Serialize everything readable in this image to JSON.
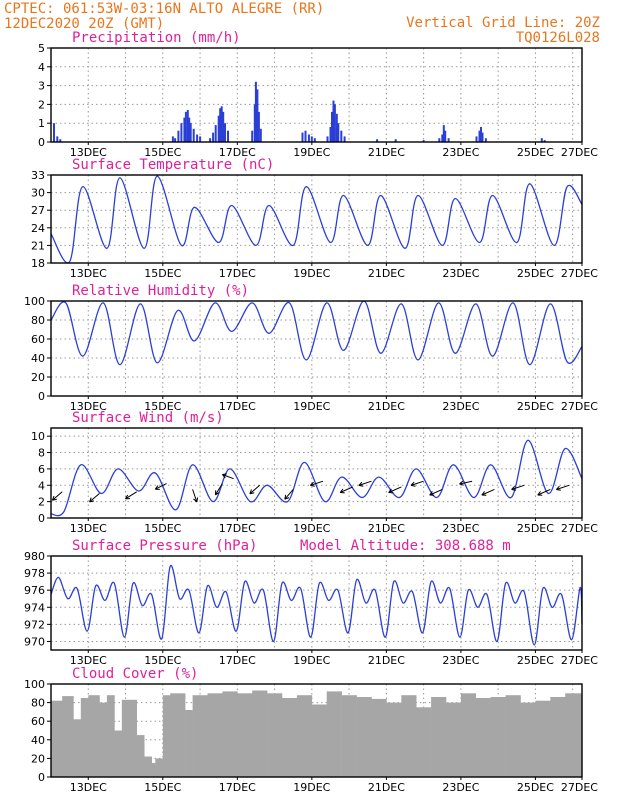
{
  "header": {
    "line1_left": "CPTEC:   061:53W-03:16N  ALTO ALEGRE (RR)",
    "line2_left": "12DEC2020 20Z (GMT)",
    "line1_right": "Vertical Grid Line: 20Z",
    "line2_right": "TQ0126L028"
  },
  "colors": {
    "header": "#e8761c",
    "panel_title": "#e0209a",
    "series": "#2b3fd6",
    "cloud": "#a6a6a6",
    "arrow": "#000000"
  },
  "x_axis": {
    "tick_labels": [
      "13DEC",
      "15DEC",
      "17DEC",
      "19DEC",
      "21DEC",
      "23DEC",
      "25DEC",
      "27DEC"
    ],
    "range_days_after_start": [
      0,
      14.25
    ],
    "vertical_grid_note": "daily at 20Z"
  },
  "chart_data": [
    {
      "id": "precipitation",
      "type": "bar",
      "title": "Precipitation (mm/h)",
      "y_ticks": [
        "0",
        "1",
        "2",
        "3",
        "4",
        "5"
      ],
      "ylim": [
        0,
        5
      ],
      "grid": true,
      "series_color": "#2b3fd6",
      "bars": [
        [
          0.08,
          1.0
        ],
        [
          0.17,
          0.3
        ],
        [
          0.25,
          0.15
        ],
        [
          3.27,
          0.3
        ],
        [
          3.33,
          0.2
        ],
        [
          3.42,
          0.6
        ],
        [
          3.5,
          1.0
        ],
        [
          3.58,
          1.3
        ],
        [
          3.62,
          1.6
        ],
        [
          3.67,
          1.7
        ],
        [
          3.71,
          1.3
        ],
        [
          3.75,
          1.0
        ],
        [
          3.83,
          0.7
        ],
        [
          3.92,
          0.4
        ],
        [
          4.0,
          0.3
        ],
        [
          4.27,
          0.2
        ],
        [
          4.35,
          0.5
        ],
        [
          4.42,
          0.9
        ],
        [
          4.5,
          1.4
        ],
        [
          4.54,
          1.8
        ],
        [
          4.58,
          1.9
        ],
        [
          4.62,
          1.6
        ],
        [
          4.67,
          1.0
        ],
        [
          4.75,
          0.6
        ],
        [
          5.4,
          0.6
        ],
        [
          5.47,
          2.0
        ],
        [
          5.5,
          3.2
        ],
        [
          5.54,
          2.8
        ],
        [
          5.58,
          1.6
        ],
        [
          5.63,
          0.7
        ],
        [
          6.75,
          0.5
        ],
        [
          6.83,
          0.6
        ],
        [
          6.92,
          0.4
        ],
        [
          7.0,
          0.3
        ],
        [
          7.08,
          0.2
        ],
        [
          7.42,
          0.3
        ],
        [
          7.5,
          0.8
        ],
        [
          7.54,
          1.6
        ],
        [
          7.58,
          2.2
        ],
        [
          7.62,
          2.0
        ],
        [
          7.67,
          1.5
        ],
        [
          7.71,
          1.0
        ],
        [
          7.79,
          0.6
        ],
        [
          7.88,
          0.3
        ],
        [
          8.75,
          0.15
        ],
        [
          9.25,
          0.15
        ],
        [
          10.0,
          0.1
        ],
        [
          10.42,
          0.2
        ],
        [
          10.5,
          0.4
        ],
        [
          10.54,
          0.9
        ],
        [
          10.58,
          0.6
        ],
        [
          10.67,
          0.2
        ],
        [
          11.42,
          0.3
        ],
        [
          11.5,
          0.6
        ],
        [
          11.54,
          0.8
        ],
        [
          11.58,
          0.5
        ],
        [
          11.67,
          0.2
        ],
        [
          13.17,
          0.2
        ],
        [
          13.25,
          0.1
        ]
      ]
    },
    {
      "id": "temperature",
      "type": "line",
      "title": "Surface Temperature (nC)",
      "y_ticks": [
        "18",
        "21",
        "24",
        "27",
        "30",
        "33"
      ],
      "ylim": [
        18,
        33
      ],
      "grid": true,
      "series_color": "#2b3fd6",
      "daily": {
        "start": 23.0,
        "first_min": 18.2,
        "min_day_offset": 0.5,
        "max_day_offset": 0.85,
        "mins": [
          18.2,
          20.5,
          20.5,
          21.0,
          21.5,
          21.0,
          21.0,
          21.5,
          21.0,
          20.5,
          21.0,
          21.5,
          21.5,
          21.0,
          22.0
        ],
        "maxs": [
          31.0,
          32.5,
          32.8,
          27.5,
          27.8,
          27.8,
          31.0,
          29.5,
          29.5,
          29.5,
          29.0,
          29.5,
          31.5,
          31.0,
          31.0
        ],
        "end": 28.0
      }
    },
    {
      "id": "humidity",
      "type": "line",
      "title": "Relative Humidity (%)",
      "y_ticks": [
        "0",
        "20",
        "40",
        "60",
        "80",
        "100"
      ],
      "ylim": [
        0,
        100
      ],
      "grid": true,
      "series_color": "#2b3fd6",
      "daily": {
        "start": 80,
        "min_day_offset": 0.85,
        "max_day_offset": 0.4,
        "mins": [
          42,
          33,
          35,
          58,
          68,
          66,
          38,
          48,
          45,
          38,
          45,
          42,
          33,
          36,
          44
        ],
        "maxs": [
          98,
          98,
          97,
          90,
          98,
          98,
          98,
          98,
          100,
          97,
          98,
          97,
          98,
          97,
          97
        ],
        "end": 52
      }
    },
    {
      "id": "wind",
      "type": "line",
      "title": "Surface Wind (m/s)",
      "y_ticks": [
        "0",
        "2",
        "4",
        "6",
        "8",
        "10"
      ],
      "ylim": [
        0,
        11
      ],
      "grid": true,
      "series_color": "#2b3fd6",
      "arrow_color": "#000000",
      "daily": {
        "start": 0.5,
        "min_day_offset": 0.35,
        "max_day_offset": 0.8,
        "mins": [
          0.8,
          3.0,
          3.3,
          1.0,
          2.0,
          2.0,
          2.0,
          2.0,
          2.5,
          2.5,
          2.5,
          2.5,
          2.5,
          3.0,
          3.0
        ],
        "maxs": [
          6.5,
          6.0,
          5.5,
          6.5,
          6.0,
          4.0,
          6.8,
          5.0,
          5.0,
          6.0,
          6.5,
          6.5,
          9.5,
          8.5,
          9.0
        ],
        "end": 4.8
      },
      "vectors": [
        [
          0.3,
          3.2,
          -0.7,
          -0.6
        ],
        [
          1.3,
          3.0,
          -0.7,
          -0.6
        ],
        [
          2.3,
          3.2,
          -0.8,
          -0.5
        ],
        [
          3.1,
          4.2,
          -0.8,
          -0.4
        ],
        [
          3.8,
          3.5,
          0.3,
          -0.9
        ],
        [
          4.6,
          4.2,
          -0.5,
          -0.8
        ],
        [
          4.9,
          4.8,
          -0.8,
          0.3
        ],
        [
          5.6,
          4.0,
          -0.7,
          -0.6
        ],
        [
          6.5,
          3.5,
          -0.6,
          -0.7
        ],
        [
          7.3,
          4.5,
          -0.9,
          -0.3
        ],
        [
          8.1,
          3.8,
          -0.9,
          -0.4
        ],
        [
          8.6,
          4.5,
          -0.9,
          -0.3
        ],
        [
          9.4,
          3.8,
          -0.9,
          -0.4
        ],
        [
          10.0,
          4.5,
          -0.9,
          -0.3
        ],
        [
          10.5,
          3.5,
          -0.9,
          -0.4
        ],
        [
          11.3,
          4.5,
          -0.9,
          -0.2
        ],
        [
          11.9,
          3.5,
          -0.9,
          -0.4
        ],
        [
          12.7,
          4.0,
          -0.9,
          -0.3
        ],
        [
          13.4,
          3.5,
          -0.9,
          -0.4
        ],
        [
          13.9,
          4.0,
          -0.9,
          -0.3
        ]
      ]
    },
    {
      "id": "pressure",
      "type": "line",
      "title": "Surface Pressure (hPa)",
      "annotation": "Model Altitude: 308.688 m",
      "y_ticks": [
        "970",
        "972",
        "974",
        "976",
        "978",
        "980"
      ],
      "ylim": [
        969,
        980
      ],
      "grid": true,
      "series_color": "#2b3fd6",
      "semidiurnal": {
        "start": 975.5,
        "highs": [
          977.5,
          976.5,
          976.8,
          978.8,
          976.5,
          977.0,
          976.8,
          976.8,
          977.2,
          977.0,
          977.0,
          976.0,
          976.8,
          976.2,
          976.3
        ],
        "midlows": [
          975.0,
          974.8,
          974.2,
          975.0,
          974.0,
          974.5,
          974.8,
          974.8,
          974.5,
          974.5,
          974.5,
          974.0,
          974.5,
          974.0,
          974.2
        ],
        "seconds": [
          976.2,
          976.8,
          975.5,
          976.0,
          975.8,
          976.0,
          976.2,
          976.0,
          976.0,
          975.8,
          976.2,
          975.5,
          975.8,
          975.5,
          975.6
        ],
        "lows": [
          971.2,
          970.5,
          970.3,
          971.0,
          971.2,
          970.0,
          970.5,
          971.0,
          970.5,
          971.0,
          970.5,
          970.0,
          969.6,
          970.2,
          970.5
        ],
        "end": 972.0
      }
    },
    {
      "id": "cloud_cover",
      "type": "bar",
      "title": "Cloud Cover (%)",
      "y_ticks": [
        "0",
        "20",
        "40",
        "60",
        "80",
        "100"
      ],
      "ylim": [
        0,
        100
      ],
      "grid": true,
      "series_color": "#a6a6a6",
      "segments": [
        [
          0.0,
          0.3,
          82
        ],
        [
          0.3,
          0.6,
          87
        ],
        [
          0.6,
          0.8,
          62
        ],
        [
          0.8,
          1.0,
          85
        ],
        [
          1.0,
          1.3,
          88
        ],
        [
          1.3,
          1.5,
          80
        ],
        [
          1.5,
          1.7,
          88
        ],
        [
          1.7,
          1.9,
          50
        ],
        [
          1.9,
          2.3,
          83
        ],
        [
          2.3,
          2.5,
          45
        ],
        [
          2.5,
          2.7,
          22
        ],
        [
          2.7,
          2.8,
          15
        ],
        [
          2.8,
          3.0,
          20
        ],
        [
          3.0,
          3.2,
          88
        ],
        [
          3.2,
          3.6,
          90
        ],
        [
          3.6,
          3.8,
          72
        ],
        [
          3.8,
          4.2,
          88
        ],
        [
          4.2,
          4.6,
          90
        ],
        [
          4.6,
          5.0,
          92
        ],
        [
          5.0,
          5.4,
          90
        ],
        [
          5.4,
          5.8,
          93
        ],
        [
          5.8,
          6.2,
          90
        ],
        [
          6.2,
          6.6,
          85
        ],
        [
          6.6,
          7.0,
          88
        ],
        [
          7.0,
          7.4,
          78
        ],
        [
          7.4,
          7.8,
          92
        ],
        [
          7.8,
          8.2,
          88
        ],
        [
          8.2,
          8.6,
          86
        ],
        [
          8.6,
          9.0,
          84
        ],
        [
          9.0,
          9.4,
          80
        ],
        [
          9.4,
          9.8,
          88
        ],
        [
          9.8,
          10.2,
          75
        ],
        [
          10.2,
          10.6,
          86
        ],
        [
          10.6,
          11.0,
          80
        ],
        [
          11.0,
          11.4,
          90
        ],
        [
          11.4,
          11.8,
          85
        ],
        [
          11.8,
          12.2,
          86
        ],
        [
          12.2,
          12.6,
          88
        ],
        [
          12.6,
          13.0,
          80
        ],
        [
          13.0,
          13.4,
          82
        ],
        [
          13.4,
          13.8,
          86
        ],
        [
          13.8,
          14.25,
          90
        ]
      ]
    }
  ]
}
